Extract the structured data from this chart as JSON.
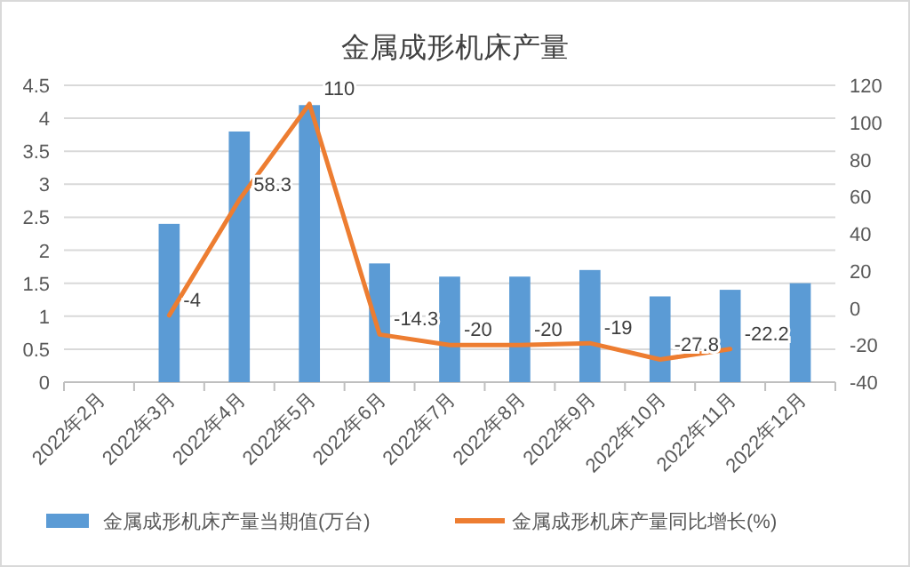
{
  "chart_data": {
    "type": "bar",
    "title": "金属成形机床产量",
    "categories": [
      "2022年2月",
      "2022年3月",
      "2022年4月",
      "2022年5月",
      "2022年6月",
      "2022年7月",
      "2022年8月",
      "2022年9月",
      "2022年10月",
      "2022年11月",
      "2022年12月"
    ],
    "series": [
      {
        "name": "金属成形机床产量当期值(万台)",
        "color": "#5b9bd5",
        "values": [
          null,
          2.4,
          3.8,
          4.2,
          1.8,
          1.6,
          1.6,
          1.7,
          1.3,
          1.4,
          1.5
        ]
      },
      {
        "name": "金属成形机床产量同比增长(%)",
        "type": "line",
        "axis": "y2",
        "color": "#ed7d31",
        "values": [
          null,
          -4,
          58.3,
          110,
          -14.3,
          -20,
          -20,
          -19,
          -27.8,
          -22.2,
          null
        ],
        "value_labels": [
          null,
          "-4",
          "58.3",
          "110",
          "-14.3",
          "-20",
          "-20",
          "-19",
          "-27.8",
          "-22.2",
          null
        ]
      }
    ],
    "ylim": [
      0,
      4.5
    ],
    "yticks": [
      0,
      0.5,
      1,
      1.5,
      2,
      2.5,
      3,
      3.5,
      4,
      4.5
    ],
    "y2lim": [
      -40,
      120
    ],
    "y2ticks": [
      -40,
      -20,
      0,
      20,
      40,
      60,
      80,
      100,
      120
    ],
    "grid": "y",
    "legend": "bottom",
    "marker": "none",
    "line_style": "solid"
  }
}
